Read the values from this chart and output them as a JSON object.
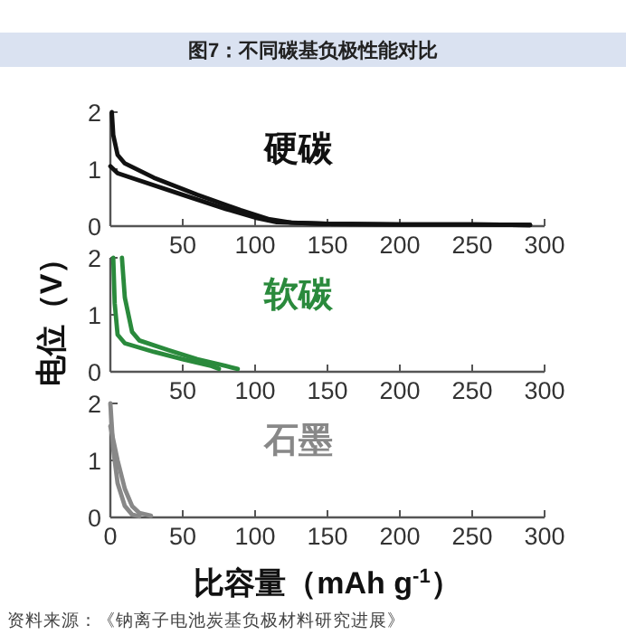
{
  "chart_data": [
    {
      "type": "line",
      "title": "图7：不同碳基负极性能对比",
      "annotations": [
        "硬碳"
      ],
      "xlim": [
        0,
        300
      ],
      "xticks": [
        {
          "value": 0,
          "label": null
        },
        50,
        100,
        150,
        200,
        250,
        300
      ],
      "ylim": [
        0,
        2
      ],
      "yticks": [
        0,
        1,
        2
      ],
      "series": [
        {
          "color": "#111111",
          "x": [
            1,
            2,
            5,
            10,
            30,
            60,
            90,
            110,
            125,
            150,
            200,
            250,
            290
          ],
          "values": [
            2,
            1.6,
            1.25,
            1.1,
            0.85,
            0.55,
            0.28,
            0.12,
            0.06,
            0.04,
            0.03,
            0.03,
            0.02
          ]
        },
        {
          "color": "#111111",
          "x": [
            0,
            5,
            20,
            50,
            80,
            100,
            115,
            150,
            200,
            250,
            290
          ],
          "values": [
            1.05,
            0.93,
            0.8,
            0.55,
            0.3,
            0.15,
            0.07,
            0.04,
            0.03,
            0.03,
            0.02
          ]
        }
      ]
    },
    {
      "type": "line",
      "ylabel": "电位（V）",
      "annotations": [
        "软碳"
      ],
      "xlim": [
        0,
        300
      ],
      "xticks": [
        {
          "value": 0,
          "label": null
        },
        50,
        100,
        150,
        200,
        250,
        300
      ],
      "ylim": [
        0,
        2
      ],
      "yticks": [
        0,
        1,
        2
      ],
      "series": [
        {
          "color": "#2a8a3c",
          "x": [
            2,
            3,
            5,
            10,
            30,
            50,
            70,
            75
          ],
          "values": [
            2,
            1.2,
            0.65,
            0.5,
            0.35,
            0.22,
            0.1,
            0.05
          ]
        },
        {
          "color": "#2a8a3c",
          "x": [
            8,
            10,
            15,
            20,
            40,
            60,
            80,
            88
          ],
          "values": [
            2,
            1.3,
            0.7,
            0.55,
            0.38,
            0.22,
            0.1,
            0.05
          ]
        }
      ]
    },
    {
      "type": "line",
      "xlabel": "比容量（mAh g$^{-1}$）",
      "annotations": [
        "石墨",
        "资料来源：《钠离子电池炭基负极材料研究进展》"
      ],
      "xlim": [
        0,
        300
      ],
      "xticks": [
        0,
        50,
        100,
        150,
        200,
        250,
        300
      ],
      "ylim": [
        0,
        2
      ],
      "yticks": [
        0,
        1,
        2
      ],
      "series": [
        {
          "color": "#888888",
          "x": [
            0,
            2,
            5,
            10,
            15,
            20
          ],
          "values": [
            2,
            1.2,
            0.6,
            0.2,
            0.05,
            0.02
          ]
        },
        {
          "color": "#888888",
          "x": [
            0,
            5,
            10,
            15,
            20,
            28
          ],
          "values": [
            1.6,
            1,
            0.5,
            0.2,
            0.08,
            0.03
          ]
        }
      ]
    }
  ]
}
